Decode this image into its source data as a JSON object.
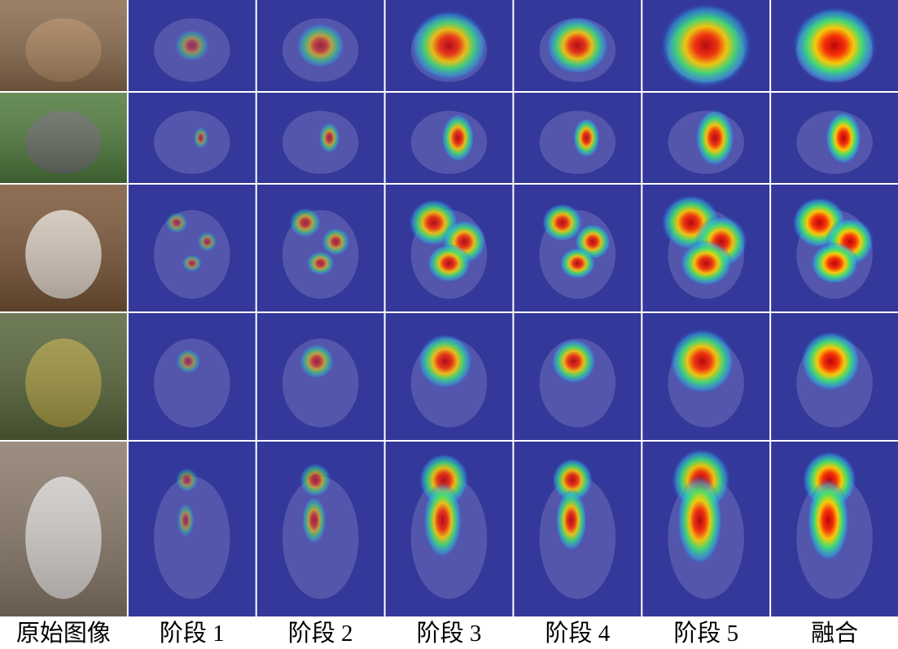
{
  "columns": [
    "原始图像",
    "阶段 1",
    "阶段 2",
    "阶段 3",
    "阶段 4",
    "阶段 5",
    "融合"
  ]
}
